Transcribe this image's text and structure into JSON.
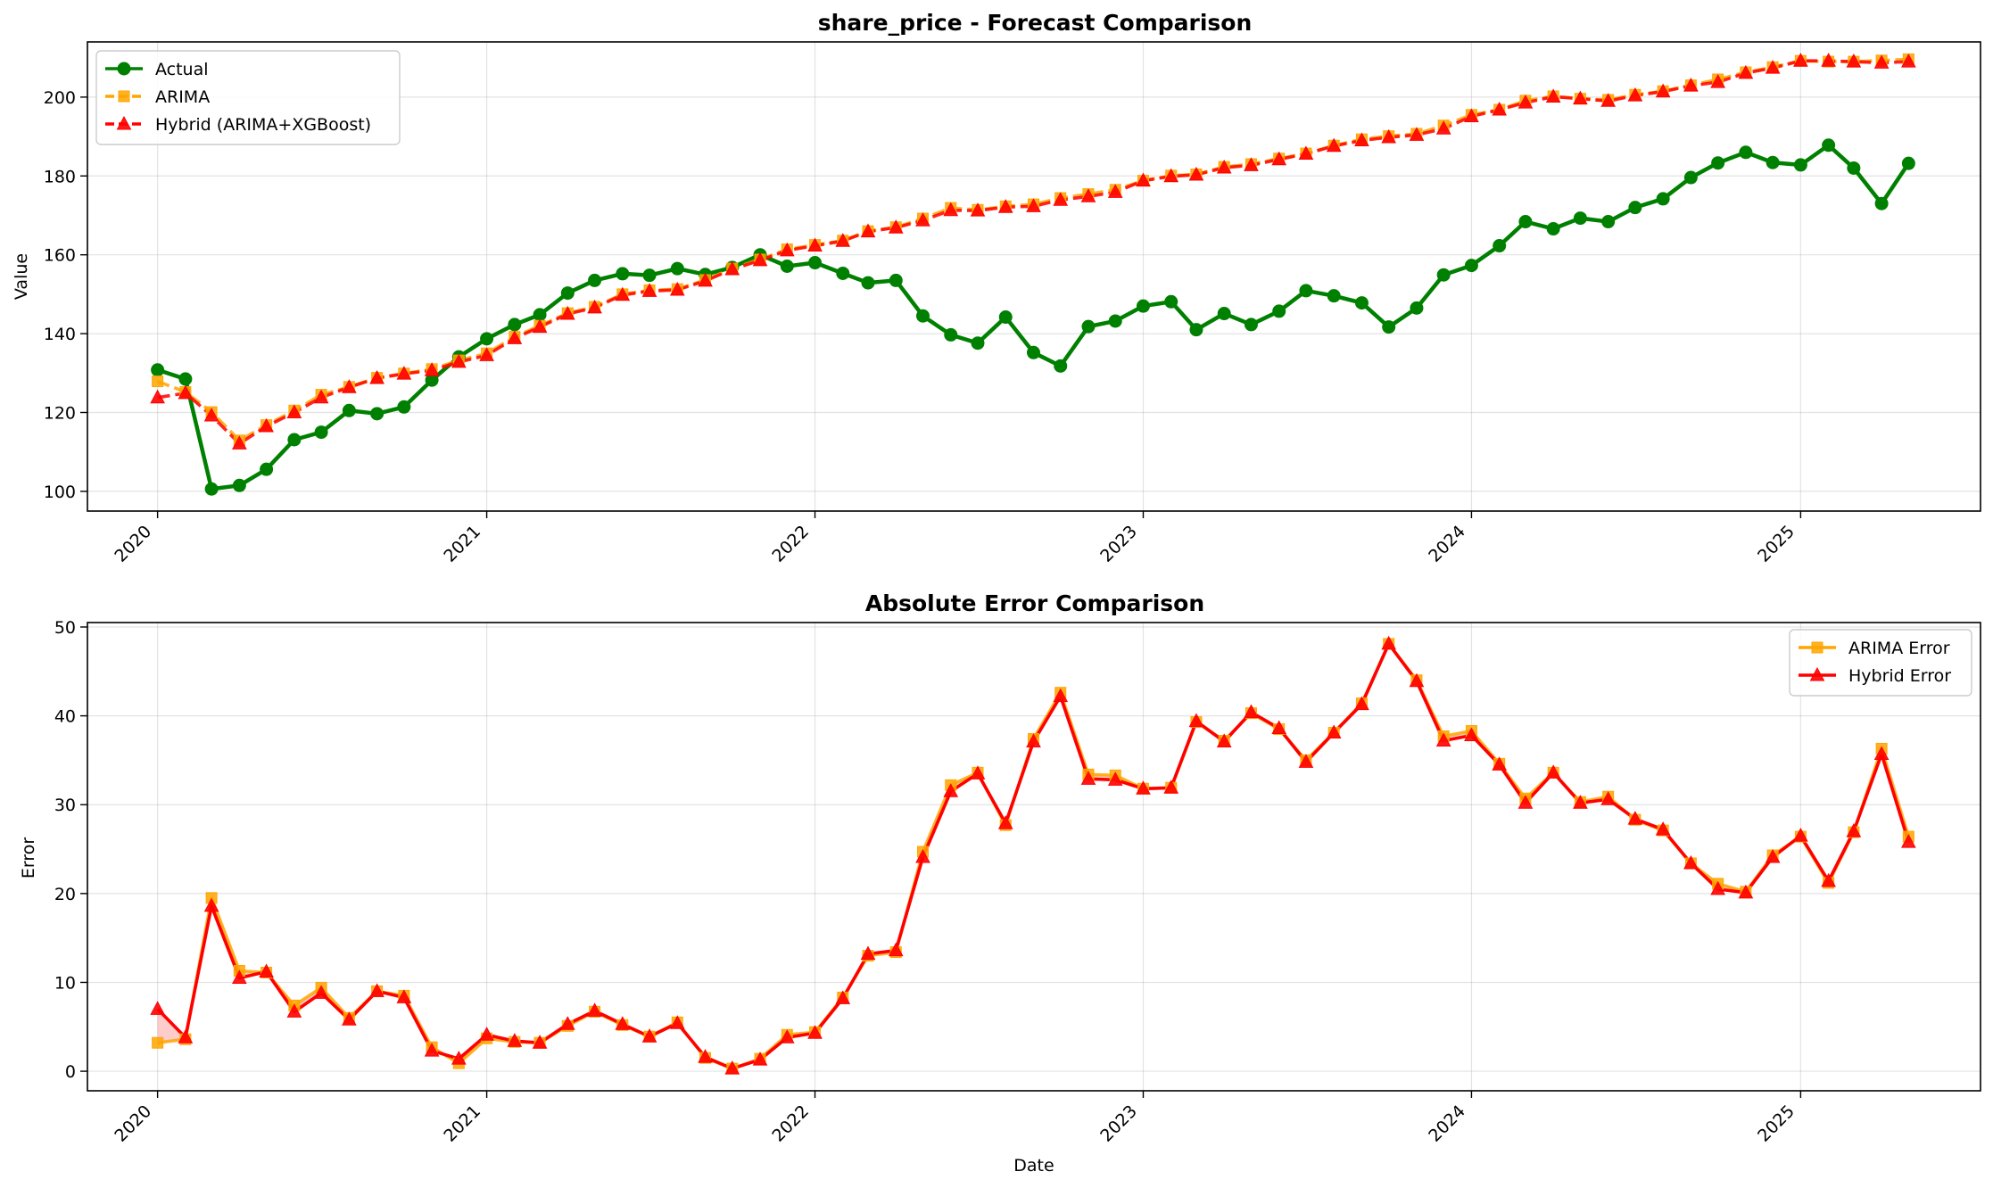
{
  "chart_data": [
    {
      "type": "line",
      "title": "share_price - Forecast Comparison",
      "xlabel": "",
      "ylabel": "Value",
      "x_ticks": [
        "2020",
        "2021",
        "2022",
        "2023",
        "2024",
        "2025"
      ],
      "y_ticks": [
        100,
        120,
        140,
        160,
        180,
        200
      ],
      "ylim": [
        95,
        214
      ],
      "x_range": [
        "2019-10-15",
        "2025-07-20"
      ],
      "grid": true,
      "legend_position": "top-left",
      "x": [
        "2020-01",
        "2020-02",
        "2020-03",
        "2020-04",
        "2020-05",
        "2020-06",
        "2020-07",
        "2020-08",
        "2020-09",
        "2020-10",
        "2020-11",
        "2020-12",
        "2021-01",
        "2021-02",
        "2021-03",
        "2021-04",
        "2021-05",
        "2021-06",
        "2021-07",
        "2021-08",
        "2021-09",
        "2021-10",
        "2021-11",
        "2021-12",
        "2022-01",
        "2022-02",
        "2022-03",
        "2022-04",
        "2022-05",
        "2022-06",
        "2022-07",
        "2022-08",
        "2022-09",
        "2022-10",
        "2022-11",
        "2022-12",
        "2023-01",
        "2023-02",
        "2023-03",
        "2023-04",
        "2023-05",
        "2023-06",
        "2023-07",
        "2023-08",
        "2023-09",
        "2023-10",
        "2023-11",
        "2023-12",
        "2024-01",
        "2024-02",
        "2024-03",
        "2024-04",
        "2024-05",
        "2024-06",
        "2024-07",
        "2024-08",
        "2024-09",
        "2024-10",
        "2024-11",
        "2024-12",
        "2025-01",
        "2025-02",
        "2025-03",
        "2025-04",
        "2025-05"
      ],
      "series": [
        {
          "name": "Actual",
          "color": "#008000",
          "marker": "circle",
          "style": "solid",
          "values": [
            130.8,
            128.5,
            100.6,
            101.5,
            105.6,
            113.1,
            115.0,
            120.5,
            119.7,
            121.4,
            128.2,
            134.1,
            138.7,
            142.3,
            144.8,
            150.3,
            153.5,
            155.2,
            154.8,
            156.5,
            155.0,
            156.8,
            160.0,
            157.1,
            158.0,
            155.3,
            152.9,
            153.5,
            144.5,
            139.7,
            137.6,
            144.2,
            135.2,
            131.8,
            141.8,
            143.2,
            147.0,
            148.1,
            141.0,
            145.1,
            142.3,
            145.7,
            150.9,
            149.6,
            147.8,
            141.7,
            146.5,
            154.9,
            157.3,
            162.3,
            168.4,
            166.6,
            169.3,
            168.4,
            172.0,
            174.2,
            179.6,
            183.3,
            186.0,
            183.4,
            182.8,
            187.8,
            182.0,
            173.0,
            183.2
          ]
        },
        {
          "name": "ARIMA",
          "color": "#FFA500",
          "marker": "square",
          "style": "dashed",
          "values": [
            127.9,
            125.2,
            120.1,
            112.9,
            116.8,
            120.5,
            124.5,
            126.5,
            128.8,
            129.9,
            131.0,
            133.2,
            135.0,
            139.2,
            142.0,
            145.2,
            146.8,
            150.0,
            151.0,
            151.3,
            153.6,
            156.5,
            158.8,
            161.4,
            162.5,
            163.6,
            166.0,
            167.0,
            169.2,
            171.9,
            171.4,
            172.3,
            172.8,
            174.4,
            175.4,
            176.5,
            178.8,
            180.1,
            180.4,
            182.3,
            183.0,
            184.4,
            185.7,
            187.7,
            189.3,
            190.1,
            190.7,
            192.8,
            195.5,
            196.8,
            199.1,
            200.2,
            199.6,
            199.3,
            200.6,
            201.5,
            203.0,
            204.5,
            206.3,
            207.6,
            209.2,
            209.0,
            209.0,
            209.3,
            209.6
          ]
        },
        {
          "name": "Hybrid (ARIMA+XGBoost)",
          "color": "#FF0000",
          "marker": "triangle",
          "style": "dashed",
          "values": [
            123.8,
            124.9,
            119.2,
            112.1,
            116.5,
            120.0,
            123.8,
            126.4,
            128.7,
            129.8,
            130.7,
            132.8,
            134.5,
            138.8,
            141.7,
            145.0,
            146.6,
            149.8,
            150.8,
            151.1,
            153.4,
            156.3,
            158.6,
            161.1,
            162.3,
            163.5,
            165.9,
            166.9,
            168.7,
            171.3,
            171.2,
            172.1,
            172.3,
            173.9,
            174.8,
            175.9,
            178.8,
            179.9,
            180.3,
            182.1,
            182.7,
            184.2,
            185.6,
            187.6,
            189.0,
            189.8,
            190.4,
            192.0,
            195.1,
            196.8,
            198.6,
            200.1,
            199.6,
            199.0,
            200.4,
            201.4,
            202.9,
            203.8,
            206.1,
            207.4,
            209.2,
            209.2,
            209.0,
            208.7,
            209.0
          ]
        }
      ]
    },
    {
      "type": "line",
      "title": "Absolute Error Comparison",
      "xlabel": "Date",
      "ylabel": "Error",
      "x_ticks": [
        "2020",
        "2021",
        "2022",
        "2023",
        "2024",
        "2025"
      ],
      "y_ticks": [
        0,
        10,
        20,
        30,
        40,
        50
      ],
      "ylim": [
        -2.2,
        50.5
      ],
      "x_range": [
        "2019-10-15",
        "2025-07-20"
      ],
      "grid": true,
      "legend_position": "top-right",
      "x": [
        "2020-01",
        "2020-02",
        "2020-03",
        "2020-04",
        "2020-05",
        "2020-06",
        "2020-07",
        "2020-08",
        "2020-09",
        "2020-10",
        "2020-11",
        "2020-12",
        "2021-01",
        "2021-02",
        "2021-03",
        "2021-04",
        "2021-05",
        "2021-06",
        "2021-07",
        "2021-08",
        "2021-09",
        "2021-10",
        "2021-11",
        "2021-12",
        "2022-01",
        "2022-02",
        "2022-03",
        "2022-04",
        "2022-05",
        "2022-06",
        "2022-07",
        "2022-08",
        "2022-09",
        "2022-10",
        "2022-11",
        "2022-12",
        "2023-01",
        "2023-02",
        "2023-03",
        "2023-04",
        "2023-05",
        "2023-06",
        "2023-07",
        "2023-08",
        "2023-09",
        "2023-10",
        "2023-11",
        "2023-12",
        "2024-01",
        "2024-02",
        "2024-03",
        "2024-04",
        "2024-05",
        "2024-06",
        "2024-07",
        "2024-08",
        "2024-09",
        "2024-10",
        "2024-11",
        "2024-12",
        "2025-01",
        "2025-02",
        "2025-03",
        "2025-04",
        "2025-05"
      ],
      "series": [
        {
          "name": "ARIMA Error",
          "color": "#FFA500",
          "marker": "square",
          "values": [
            3.2,
            3.6,
            19.5,
            11.3,
            11.1,
            7.4,
            9.4,
            6.0,
            9.0,
            8.5,
            2.7,
            0.9,
            3.7,
            3.3,
            3.2,
            5.1,
            6.7,
            5.2,
            3.9,
            5.5,
            1.5,
            0.3,
            1.4,
            4.1,
            4.4,
            8.3,
            13.0,
            13.4,
            24.7,
            32.2,
            33.6,
            27.7,
            37.4,
            42.6,
            33.4,
            33.3,
            31.8,
            31.9,
            39.3,
            37.2,
            40.3,
            38.5,
            35.0,
            38.1,
            41.4,
            48.1,
            44.0,
            37.7,
            38.3,
            34.6,
            30.7,
            33.6,
            30.3,
            30.9,
            28.3,
            27.1,
            23.4,
            21.1,
            20.2,
            24.3,
            26.4,
            21.2,
            26.9,
            36.3,
            26.4
          ]
        },
        {
          "name": "Hybrid Error",
          "color": "#FF0000",
          "marker": "triangle",
          "values": [
            7.0,
            3.8,
            18.6,
            10.5,
            11.2,
            6.7,
            8.8,
            5.8,
            9.0,
            8.3,
            2.3,
            1.4,
            4.1,
            3.4,
            3.2,
            5.3,
            6.8,
            5.3,
            3.9,
            5.4,
            1.6,
            0.3,
            1.3,
            3.8,
            4.3,
            8.2,
            13.2,
            13.6,
            24.1,
            31.5,
            33.5,
            27.9,
            37.1,
            42.2,
            32.9,
            32.8,
            31.8,
            31.9,
            39.4,
            37.1,
            40.4,
            38.6,
            34.8,
            38.1,
            41.3,
            48.1,
            43.9,
            37.2,
            37.8,
            34.5,
            30.2,
            33.6,
            30.2,
            30.6,
            28.4,
            27.2,
            23.4,
            20.5,
            20.1,
            24.1,
            26.5,
            21.4,
            27.0,
            35.7,
            25.8
          ]
        }
      ]
    }
  ]
}
